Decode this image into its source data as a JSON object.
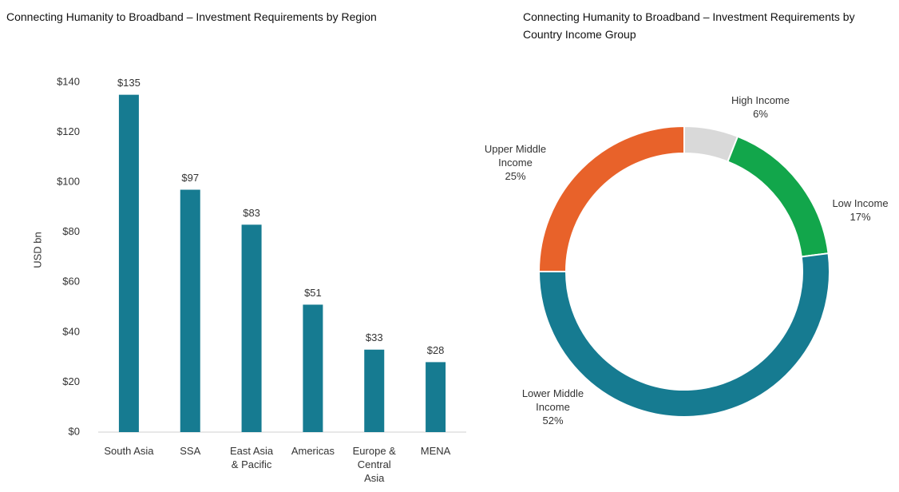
{
  "chart_data": [
    {
      "type": "bar",
      "title": "Connecting Humanity to Broadband – Investment Requirements by Region",
      "ylabel": "USD bn",
      "categories": [
        "South Asia",
        "SSA",
        "East Asia & Pacific",
        "Americas",
        "Europe & Central Asia",
        "MENA"
      ],
      "values": [
        135,
        97,
        83,
        51,
        33,
        28
      ],
      "value_labels": [
        "$135",
        "$97",
        "$83",
        "$51",
        "$33",
        "$28"
      ],
      "color": "#167b91",
      "ylim": [
        0,
        140
      ],
      "yticks": [
        {
          "value": 0,
          "label": "$0"
        },
        {
          "value": 20,
          "label": "$20"
        },
        {
          "value": 40,
          "label": "$40"
        },
        {
          "value": 60,
          "label": "$60"
        },
        {
          "value": 80,
          "label": "$80"
        },
        {
          "value": 100,
          "label": "$100"
        },
        {
          "value": 120,
          "label": "$120"
        },
        {
          "value": 140,
          "label": "$140"
        }
      ],
      "grid": false
    },
    {
      "type": "donut",
      "title": "Connecting Humanity to Broadband – Investment Requirements by Country Income Group",
      "categories": [
        "High Income",
        "Low Income",
        "Lower Middle Income",
        "Upper Middle Income"
      ],
      "values": [
        6,
        17,
        52,
        25
      ],
      "value_labels": [
        "6%",
        "17%",
        "52%",
        "25%"
      ],
      "colors": [
        "#d9d9d9",
        "#12a64b",
        "#167b91",
        "#e8622a"
      ]
    }
  ]
}
